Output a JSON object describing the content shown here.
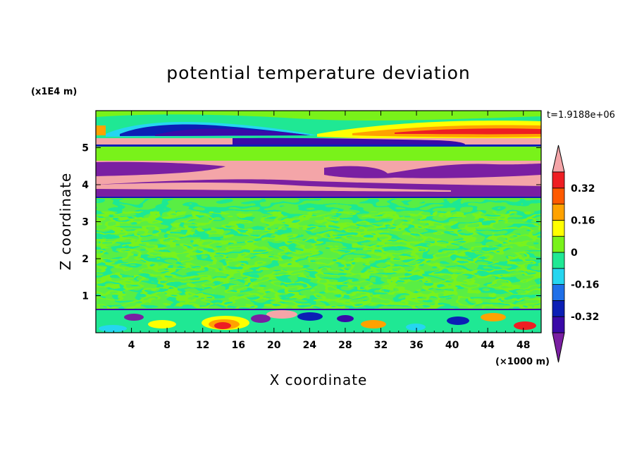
{
  "chart_data": {
    "type": "heatmap",
    "title": "potential temperature deviation",
    "xlabel": "X coordinate",
    "ylabel": "Z coordinate",
    "x_unit": "(×1000 m)",
    "y_unit": "(x1E4 m)",
    "time_label": "t=1.9188e+06",
    "xlim": [
      0,
      50
    ],
    "ylim": [
      0,
      6
    ],
    "x_ticks": [
      "4",
      "8",
      "12",
      "16",
      "20",
      "24",
      "28",
      "32",
      "36",
      "40",
      "44",
      "48"
    ],
    "y_ticks": [
      "1",
      "2",
      "3",
      "4",
      "5"
    ],
    "colorbar": {
      "labels": [
        "0.32",
        "0.16",
        "0",
        "-0.16",
        "-0.32"
      ],
      "label_values": [
        0.32,
        0.16,
        0,
        -0.16,
        -0.32
      ],
      "levels": [
        -0.4,
        -0.32,
        -0.24,
        -0.16,
        -0.08,
        0,
        0.08,
        0.16,
        0.24,
        0.32,
        0.4
      ],
      "colors": [
        "#7a1fa2",
        "#3a0aa8",
        "#0b1fb5",
        "#1f6fe8",
        "#25d6f0",
        "#1fe894",
        "#79f21a",
        "#ffff00",
        "#ffa200",
        "#ff5a00",
        "#ee1e23",
        "#f4a5a8"
      ],
      "extend": "both"
    },
    "bands": [
      {
        "z": [
          5.45,
          5.7
        ],
        "description": "upper shear layer: purple/blue core left-center, warm (yellow-orange-red) right"
      },
      {
        "z": [
          5.0,
          5.25
        ],
        "value": "pink (>0.4)"
      },
      {
        "z": [
          4.45,
          4.65
        ],
        "value": "mixed purple and pink"
      },
      {
        "z": [
          4.05,
          4.3
        ],
        "value": "pink"
      },
      {
        "z": [
          3.75,
          4.05
        ],
        "value": "purple (<-0.4)"
      },
      {
        "z": [
          0.7,
          3.65
        ],
        "value": "near zero (green / teal mottled)"
      },
      {
        "z": [
          0,
          0.65
        ],
        "description": "turbulent boundary layer with mixed positive and negative cells"
      }
    ]
  }
}
